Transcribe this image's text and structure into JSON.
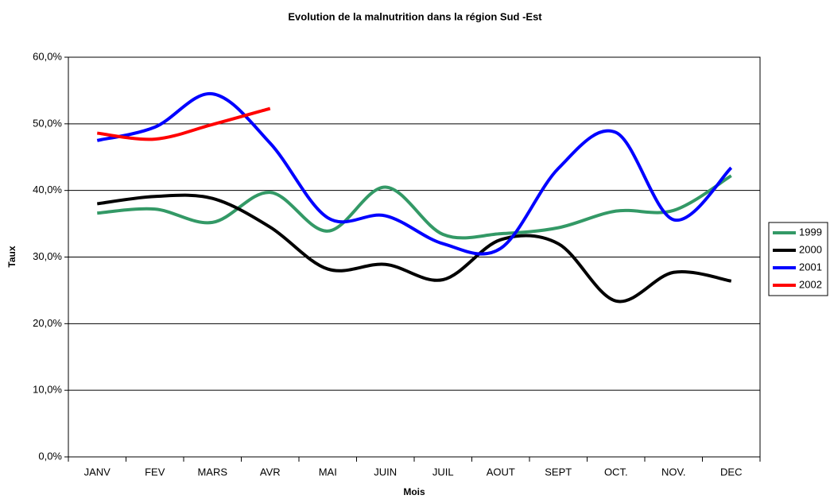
{
  "chart_data": {
    "type": "line",
    "title": "Evolution de la malnutrition dans la région Sud -Est",
    "x_label": "Mois",
    "y_label": "Taux",
    "categories": [
      "JANV",
      "FEV",
      "MARS",
      "AVR",
      "MAI",
      "JUIN",
      "JUIL",
      "AOUT",
      "SEPT",
      "OCT.",
      "NOV.",
      "DEC"
    ],
    "series": [
      {
        "name": "1999",
        "color": "#339966",
        "values": [
          36.6,
          37.2,
          35.2,
          39.7,
          33.9,
          40.5,
          33.4,
          33.5,
          34.4,
          36.9,
          37.0,
          42.2
        ]
      },
      {
        "name": "2000",
        "color": "#000000",
        "values": [
          38.0,
          39.1,
          38.8,
          34.5,
          28.2,
          28.9,
          26.6,
          32.6,
          32.0,
          23.4,
          27.7,
          26.4
        ]
      },
      {
        "name": "2001",
        "color": "#0000ff",
        "values": [
          47.5,
          49.5,
          54.5,
          47.1,
          35.9,
          36.2,
          32.0,
          31.3,
          43.3,
          48.7,
          35.6,
          43.4
        ]
      },
      {
        "name": "2002",
        "color": "#ff0000",
        "values": [
          48.6,
          47.7,
          49.9,
          52.3,
          null,
          null,
          null,
          null,
          null,
          null,
          null,
          null
        ]
      }
    ],
    "ylim": [
      0,
      60
    ],
    "yticks": [
      {
        "value": 0,
        "label": "0,0%"
      },
      {
        "value": 10,
        "label": "10,0%"
      },
      {
        "value": 20,
        "label": "20,0%"
      },
      {
        "value": 30,
        "label": "30,0%"
      },
      {
        "value": 40,
        "label": "40,0%"
      },
      {
        "value": 50,
        "label": "50,0%"
      },
      {
        "value": 60,
        "label": "60,0%"
      }
    ],
    "grid": true,
    "smooth": true,
    "legend": "right"
  }
}
